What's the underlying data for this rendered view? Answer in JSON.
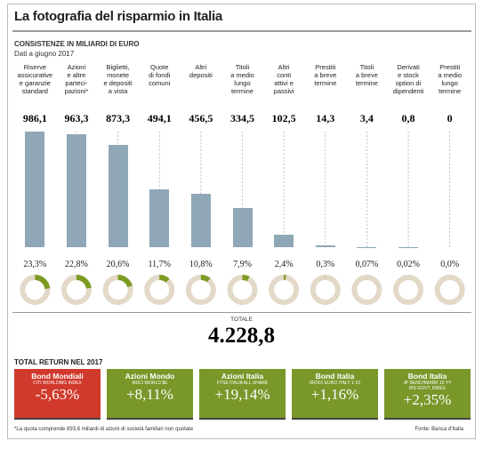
{
  "title": "La fotografia del risparmio in Italia",
  "chart_data": {
    "type": "bar",
    "title": "CONSISTENZE IN MILIARDI DI EURO",
    "subtitle": "Dati a giugno 2017",
    "color": "#8fa7b6",
    "categories": [
      "Riserve\nassicurative\ne garanzie\nstandard",
      "Azioni\ne altre\nparteci-\npazioni*",
      "Biglietti,\nmonete\ne depositi\na vista",
      "Quote\ndi fondi\ncomuni",
      "Altri\ndepositi",
      "Titoli\na medio\nlungo\ntermine",
      "Altri\nconti\nattivi e\npassivi",
      "Prestiti\na breve\ntermine",
      "Titoli\na breve\ntermine",
      "Derivati\ne stock\noption di\ndipendenti",
      "Prestiti\na medio\nlungo\ntermine"
    ],
    "values": [
      986.1,
      963.3,
      873.3,
      494.1,
      456.5,
      334.5,
      102.5,
      14.3,
      3.4,
      0.8,
      0
    ],
    "value_labels": [
      "986,1",
      "963,3",
      "873,3",
      "494,1",
      "456,5",
      "334,5",
      "102,5",
      "14,3",
      "3,4",
      "0,8",
      "0"
    ],
    "shares": [
      23.3,
      22.8,
      20.6,
      11.7,
      10.8,
      7.9,
      2.4,
      0.3,
      0.07,
      0.02,
      0.0
    ],
    "share_labels": [
      "23,3%",
      "22,8%",
      "20,6%",
      "11,7%",
      "10,8%",
      "7,9%",
      "2,4%",
      "0,3%",
      "0,07%",
      "0,02%",
      "0,0%"
    ],
    "share_color": "#7d9b22",
    "ring_color": "#e3d9c8",
    "total_label": "TOTALE",
    "total": {
      "value": 4228.8,
      "label": "4.228,8"
    }
  },
  "returns": {
    "title": "TOTAL RETURN NEL 2017",
    "items": [
      {
        "name": "Bond Mondiali",
        "index": "CITI WORLDBIG INDEX",
        "value": -5.63,
        "label": "-5,63%",
        "color": "#d0392b"
      },
      {
        "name": "Azioni Mondo",
        "index": "MSCI WORLD $E",
        "value": 8.11,
        "label": "+8,11%",
        "color": "#7a972a"
      },
      {
        "name": "Azioni Italia",
        "index": "FTSE ITALIA ALL SHARE",
        "value": 19.14,
        "label": "+19,14%",
        "color": "#7a972a"
      },
      {
        "name": "Bond Italia",
        "index": "IBOXX EURO ITALY 1-10",
        "value": 1.16,
        "label": "+1,16%",
        "color": "#7a972a"
      },
      {
        "name": "Bond Italia",
        "index": "JP BENCHMARK 10 YY\nBIS GOVT. INDEX",
        "value": 2.35,
        "label": "+2,35%",
        "color": "#7a972a"
      }
    ]
  },
  "footnote": "*La quota comprende 893,6 miliardi di azioni di società familiari non quotate",
  "source": "Fonte: Banca d'Italia"
}
